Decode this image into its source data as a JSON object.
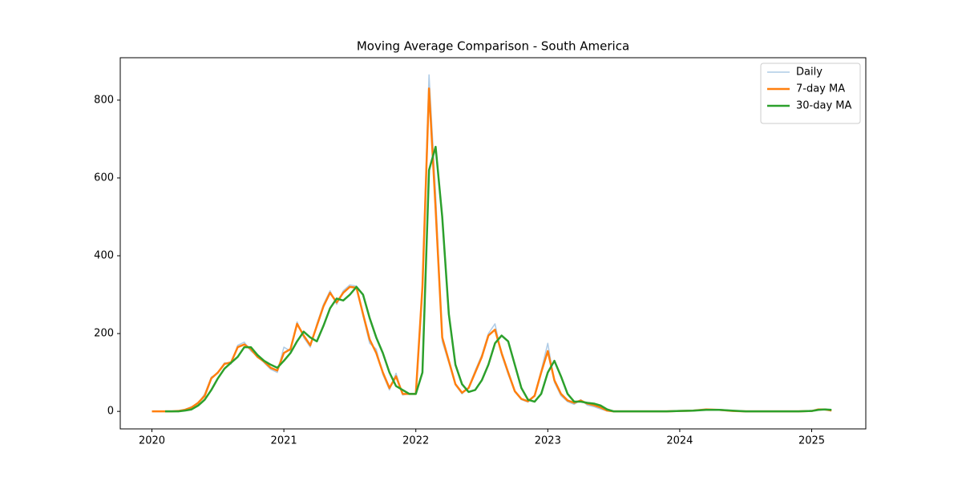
{
  "chart_data": {
    "type": "line",
    "title": "Moving Average Comparison - South America",
    "x": [
      2020.0,
      2020.05,
      2020.1,
      2020.15,
      2020.2,
      2020.25,
      2020.3,
      2020.35,
      2020.4,
      2020.45,
      2020.5,
      2020.55,
      2020.6,
      2020.65,
      2020.7,
      2020.75,
      2020.8,
      2020.85,
      2020.9,
      2020.95,
      2021.0,
      2021.05,
      2021.1,
      2021.15,
      2021.2,
      2021.25,
      2021.3,
      2021.35,
      2021.4,
      2021.45,
      2021.5,
      2021.55,
      2021.6,
      2021.65,
      2021.7,
      2021.75,
      2021.8,
      2021.85,
      2021.9,
      2021.95,
      2022.0,
      2022.05,
      2022.1,
      2022.15,
      2022.2,
      2022.25,
      2022.3,
      2022.35,
      2022.4,
      2022.45,
      2022.5,
      2022.55,
      2022.6,
      2022.65,
      2022.7,
      2022.75,
      2022.8,
      2022.85,
      2022.9,
      2022.95,
      2023.0,
      2023.05,
      2023.1,
      2023.15,
      2023.2,
      2023.25,
      2023.3,
      2023.35,
      2023.4,
      2023.45,
      2023.5,
      2023.6,
      2023.7,
      2023.8,
      2023.9,
      2024.0,
      2024.1,
      2024.2,
      2024.3,
      2024.4,
      2024.5,
      2024.6,
      2024.7,
      2024.8,
      2024.9,
      2025.0,
      2025.05,
      2025.1,
      2025.15
    ],
    "series": [
      {
        "name": "Daily",
        "color": "#aecbe6",
        "width": 1.5,
        "values": [
          0,
          0,
          0,
          0,
          1,
          5,
          12,
          20,
          45,
          88,
          98,
          125,
          122,
          170,
          178,
          155,
          142,
          125,
          108,
          100,
          165,
          155,
          230,
          190,
          165,
          225,
          275,
          310,
          275,
          310,
          325,
          322,
          245,
          175,
          160,
          95,
          55,
          98,
          42,
          46,
          44,
          330,
          865,
          560,
          180,
          125,
          68,
          45,
          62,
          105,
          145,
          200,
          225,
          145,
          95,
          50,
          30,
          24,
          42,
          105,
          175,
          75,
          40,
          25,
          18,
          30,
          16,
          12,
          6,
          1,
          0,
          0,
          0,
          0,
          0,
          1,
          2,
          5,
          4,
          1,
          0,
          0,
          0,
          0,
          0,
          1,
          5,
          6,
          2
        ]
      },
      {
        "name": "7-day MA",
        "color": "#ff7f0e",
        "width": 2.5,
        "values": [
          0,
          0,
          0,
          0,
          1,
          4,
          10,
          22,
          40,
          85,
          100,
          122,
          126,
          165,
          172,
          160,
          140,
          128,
          112,
          105,
          150,
          160,
          225,
          195,
          170,
          220,
          270,
          305,
          280,
          305,
          320,
          318,
          250,
          185,
          150,
          100,
          60,
          90,
          45,
          45,
          45,
          320,
          830,
          520,
          190,
          130,
          70,
          48,
          60,
          100,
          140,
          195,
          210,
          150,
          100,
          52,
          32,
          26,
          40,
          100,
          155,
          80,
          45,
          28,
          22,
          28,
          20,
          16,
          10,
          2,
          0,
          0,
          0,
          0,
          0,
          1,
          2,
          5,
          4,
          1,
          0,
          0,
          0,
          0,
          0,
          1,
          5,
          5,
          2
        ]
      },
      {
        "name": "30-day MA",
        "color": "#2ca02c",
        "width": 2.5,
        "values": [
          null,
          null,
          0,
          0,
          0,
          2,
          5,
          15,
          30,
          55,
          85,
          110,
          125,
          140,
          165,
          165,
          145,
          130,
          120,
          112,
          130,
          150,
          180,
          205,
          190,
          180,
          220,
          265,
          290,
          285,
          300,
          320,
          300,
          240,
          190,
          150,
          100,
          65,
          55,
          45,
          45,
          100,
          620,
          680,
          500,
          250,
          120,
          70,
          50,
          55,
          80,
          120,
          175,
          195,
          180,
          120,
          60,
          30,
          25,
          45,
          100,
          130,
          90,
          45,
          25,
          25,
          22,
          20,
          15,
          5,
          0,
          0,
          0,
          0,
          0,
          1,
          2,
          4,
          4,
          2,
          0,
          0,
          0,
          0,
          0,
          1,
          4,
          5,
          4
        ]
      }
    ],
    "xlim": [
      2019.76,
      2025.41
    ],
    "xticks": [
      2020,
      2021,
      2022,
      2023,
      2024,
      2025
    ],
    "ylim": [
      -45,
      909
    ],
    "yticks": [
      0,
      200,
      400,
      600,
      800
    ],
    "grid": false,
    "legend": "upper right"
  }
}
